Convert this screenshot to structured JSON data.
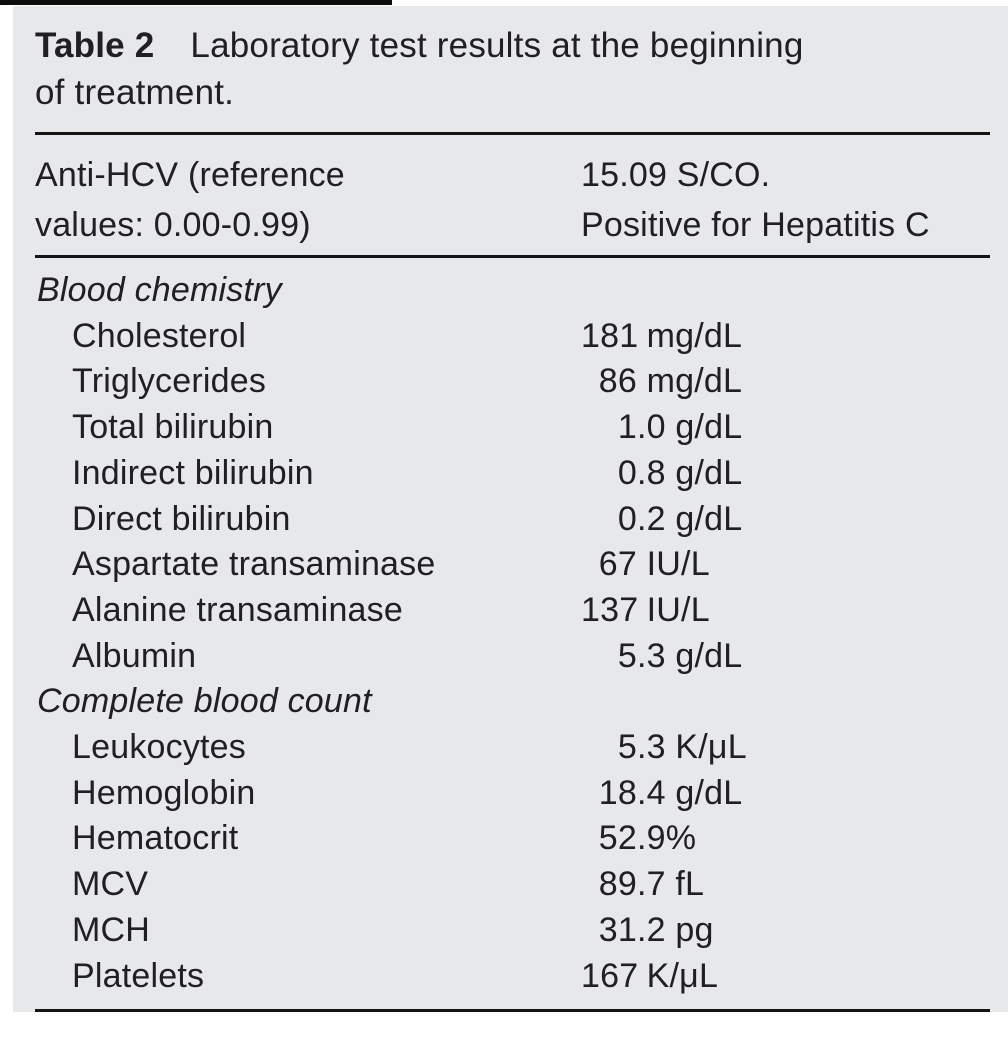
{
  "table": {
    "caption_tag": "Table 2",
    "caption_line1": "Laboratory test results at the beginning",
    "caption_line2": "of treatment.",
    "anti_hcv": {
      "label_line1": "Anti-HCV (reference",
      "label_line2": "values: 0.00-0.99)",
      "value_line1": "15.09 S/CO.",
      "value_line2": "Positive for Hepatitis C"
    },
    "rows": [
      {
        "type": "section",
        "label": "Blood chemistry",
        "value": "",
        "unit": ""
      },
      {
        "type": "item",
        "label": "Cholesterol",
        "value": "181",
        "unit": "mg/dL"
      },
      {
        "type": "item",
        "label": "Triglycerides",
        "value": "86",
        "unit": "mg/dL"
      },
      {
        "type": "item",
        "label": "Total bilirubin",
        "value": "1.0",
        "unit": "g/dL"
      },
      {
        "type": "item",
        "label": "Indirect bilirubin",
        "value": "0.8",
        "unit": "g/dL"
      },
      {
        "type": "item",
        "label": "Direct bilirubin",
        "value": "0.2",
        "unit": "g/dL"
      },
      {
        "type": "item",
        "label": "Aspartate transaminase",
        "value": "67",
        "unit": "IU/L"
      },
      {
        "type": "item",
        "label": "Alanine transaminase",
        "value": "137",
        "unit": "IU/L"
      },
      {
        "type": "item",
        "label": "Albumin",
        "value": "5.3",
        "unit": "g/dL"
      },
      {
        "type": "section",
        "label": "Complete blood count",
        "value": "",
        "unit": ""
      },
      {
        "type": "item",
        "label": "Leukocytes",
        "value": "5.3",
        "unit": "K/μL"
      },
      {
        "type": "item",
        "label": "Hemoglobin",
        "value": "18.4",
        "unit": "g/dL"
      },
      {
        "type": "item",
        "label": "Hematocrit",
        "value": "52.9",
        "unit": "%"
      },
      {
        "type": "item",
        "label": "MCV",
        "value": "89.7",
        "unit": "fL"
      },
      {
        "type": "item",
        "label": "MCH",
        "value": "31.2",
        "unit": "pg"
      },
      {
        "type": "item",
        "label": "Platelets",
        "value": "167",
        "unit": "K/μL"
      }
    ]
  },
  "colors": {
    "page_bg": "#ffffff",
    "panel_bg": "#e7e8e9",
    "text": "#202022",
    "rule": "#141414"
  }
}
